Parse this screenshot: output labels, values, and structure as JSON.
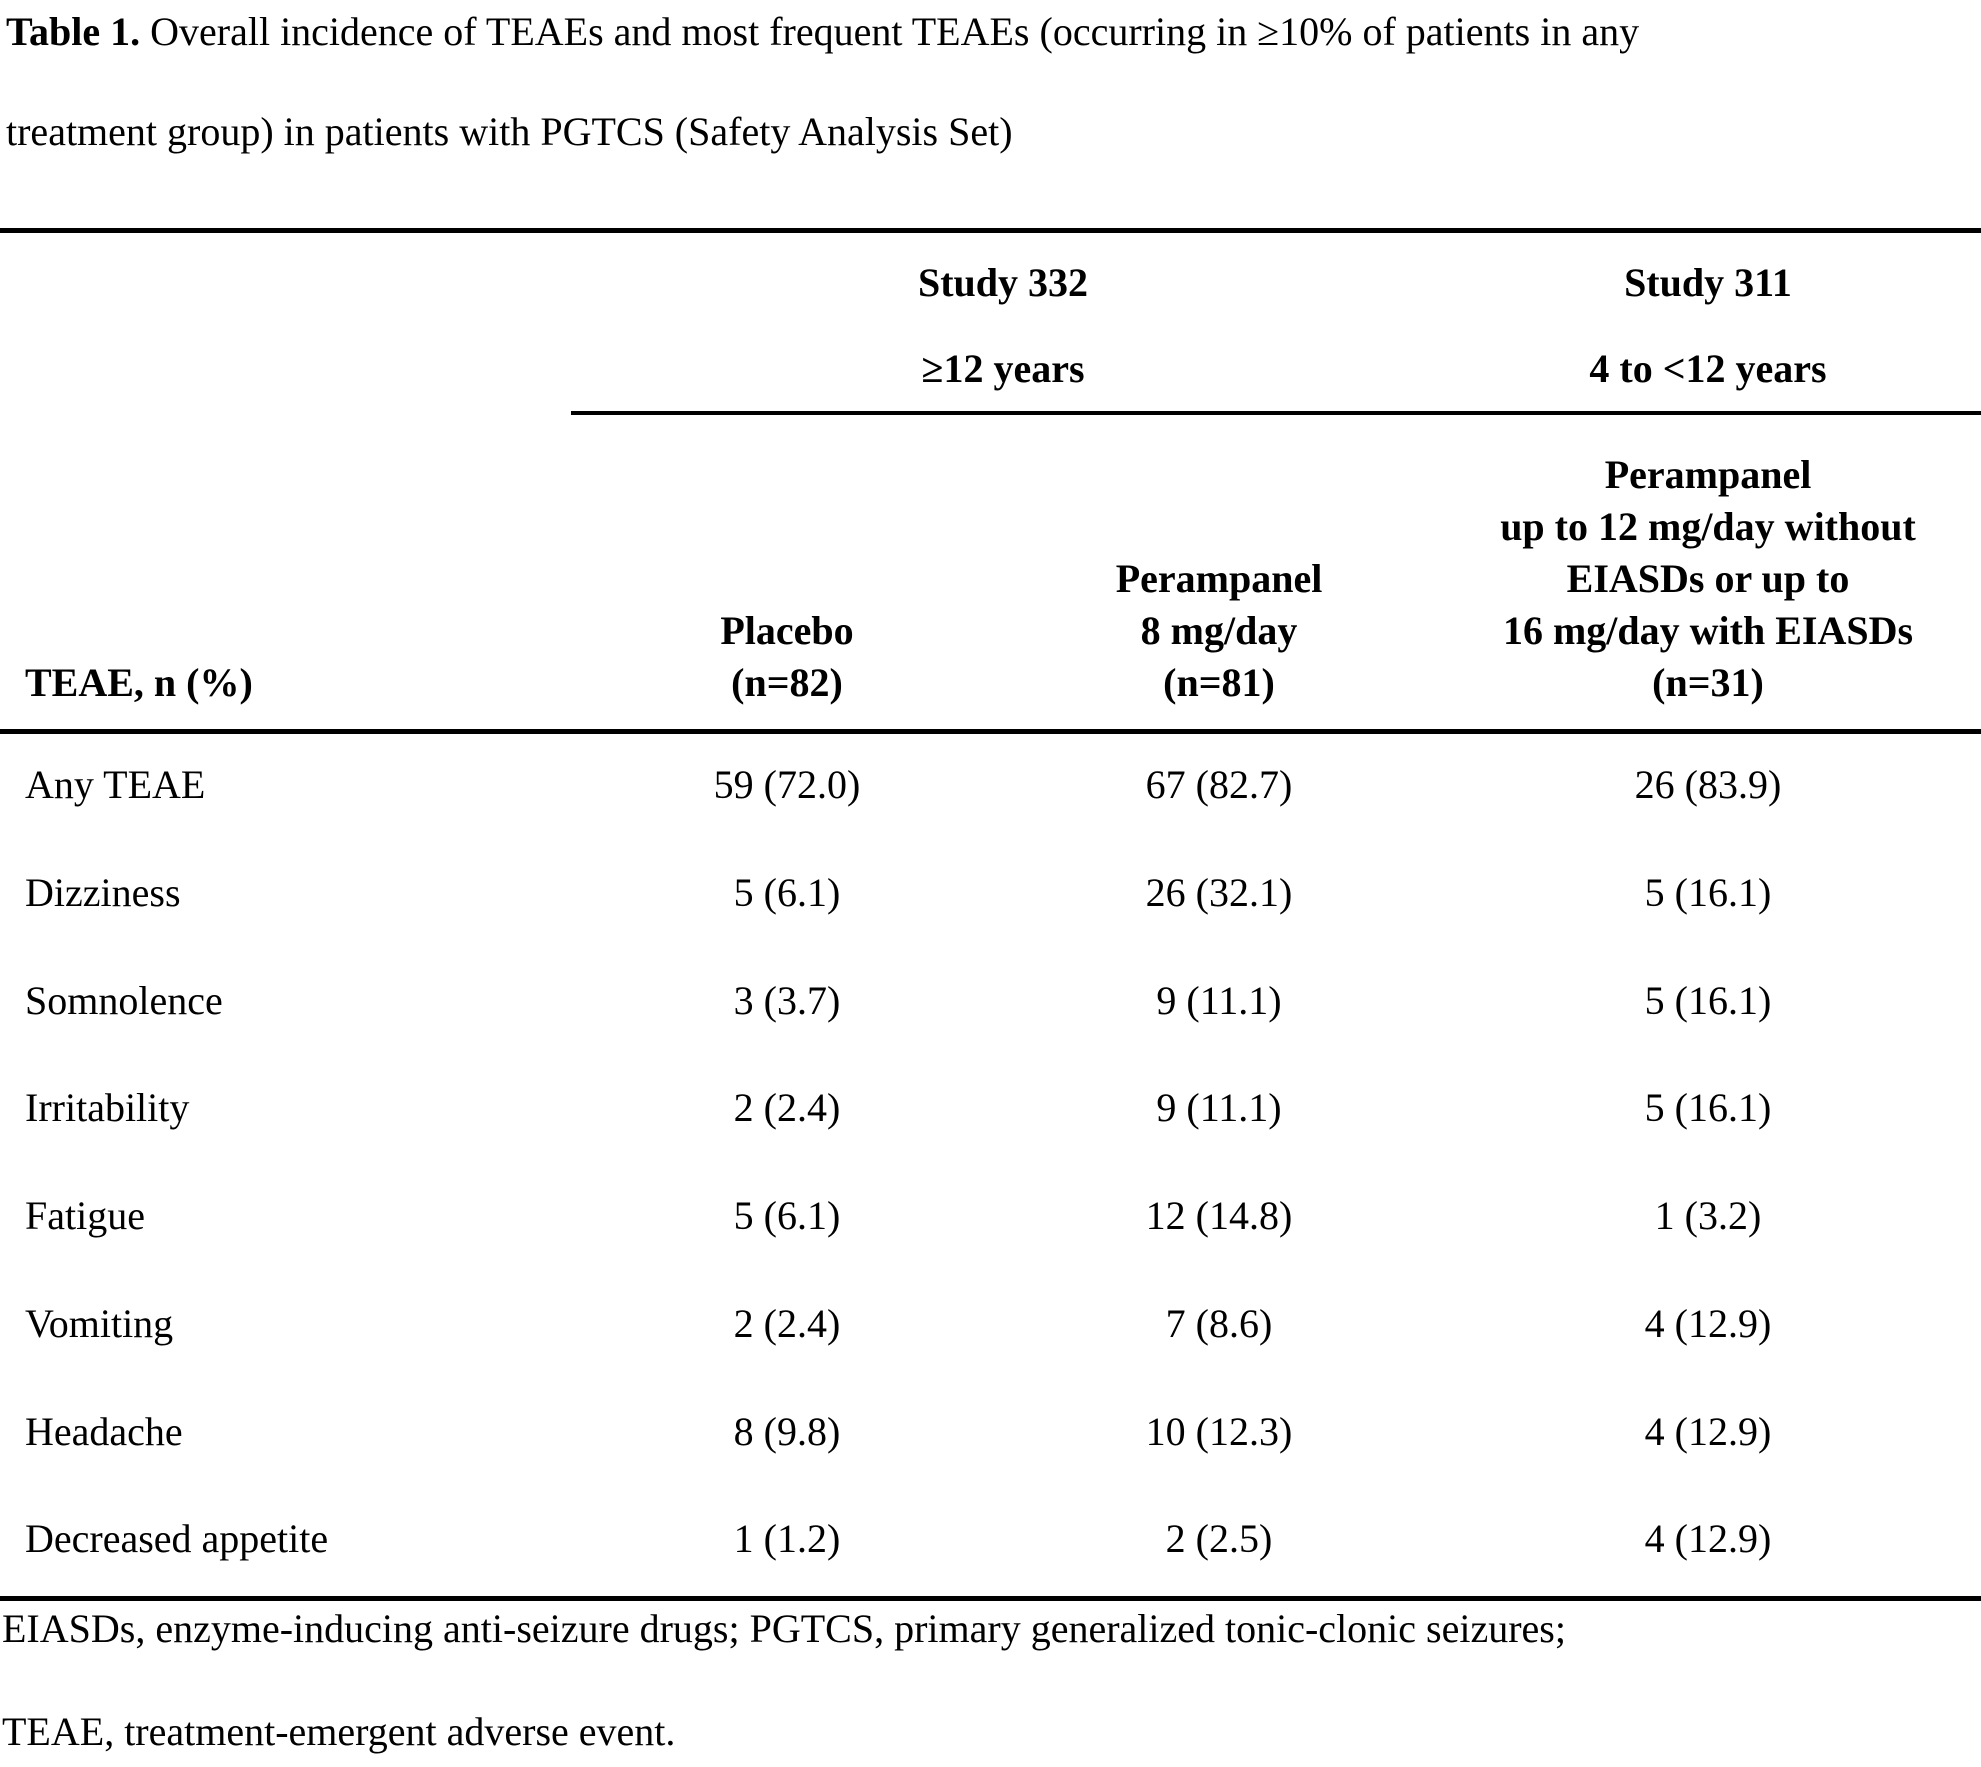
{
  "caption": {
    "label": "Table 1.",
    "text": " Overall incidence of TEAEs and most frequent TEAEs (occurring in ≥10% of patients in any\ntreatment group) in patients with PGTCS (Safety Analysis Set)"
  },
  "header": {
    "groups": [
      {
        "title": "Study 332\n≥12 years"
      },
      {
        "title": "Study 311\n4 to <12 years"
      }
    ],
    "columns": [
      "TEAE, n (%)",
      "Placebo\n(n=82)",
      "Perampanel\n8 mg/day\n(n=81)",
      "Perampanel\nup to 12 mg/day without\nEIASDs or up to\n16 mg/day with EIASDs\n(n=31)"
    ]
  },
  "table": {
    "rows": [
      {
        "label": "Any TEAE",
        "values": [
          "59 (72.0)",
          "67 (82.7)",
          "26 (83.9)"
        ]
      },
      {
        "label": "Dizziness",
        "values": [
          "5 (6.1)",
          "26 (32.1)",
          "5 (16.1)"
        ]
      },
      {
        "label": "Somnolence",
        "values": [
          "3 (3.7)",
          "9 (11.1)",
          "5 (16.1)"
        ]
      },
      {
        "label": "Irritability",
        "values": [
          "2 (2.4)",
          "9 (11.1)",
          "5 (16.1)"
        ]
      },
      {
        "label": "Fatigue",
        "values": [
          "5 (6.1)",
          "12 (14.8)",
          "1 (3.2)"
        ]
      },
      {
        "label": "Vomiting",
        "values": [
          "2 (2.4)",
          "7 (8.6)",
          "4 (12.9)"
        ]
      },
      {
        "label": "Headache",
        "values": [
          "8 (9.8)",
          "10 (12.3)",
          "4 (12.9)"
        ]
      },
      {
        "label": "Decreased appetite",
        "values": [
          "1 (1.2)",
          "2 (2.5)",
          "4 (12.9)"
        ]
      }
    ]
  },
  "footnotes": [
    "EIASDs, enzyme-inducing anti-seizure drugs; PGTCS, primary generalized tonic-clonic seizures;",
    "TEAE, treatment-emergent adverse event."
  ],
  "colors": {
    "text": "#000000",
    "background": "#ffffff",
    "rule": "#000000"
  }
}
